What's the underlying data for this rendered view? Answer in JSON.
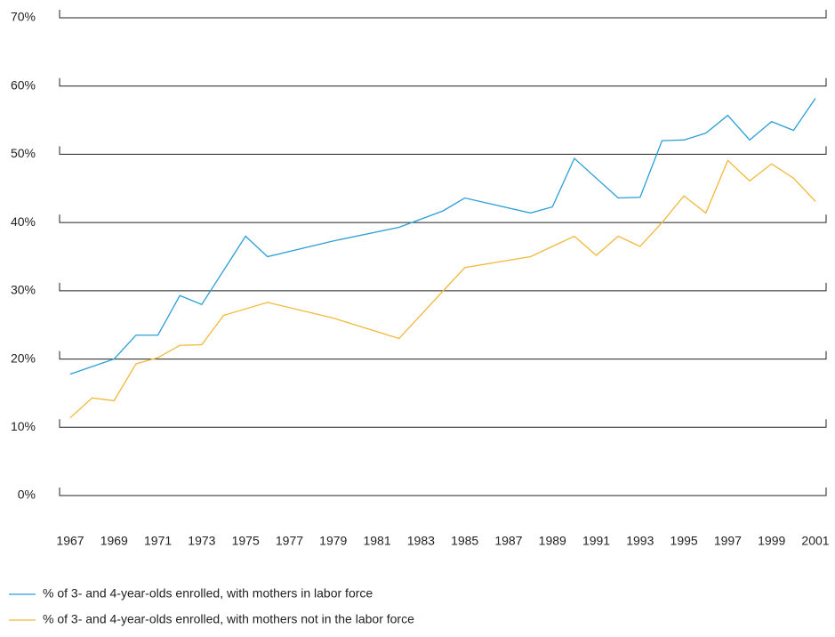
{
  "chart_data": {
    "type": "line",
    "xlim": [
      1967,
      2001
    ],
    "xticks": [
      1967,
      1969,
      1971,
      1973,
      1975,
      1977,
      1979,
      1981,
      1983,
      1985,
      1987,
      1989,
      1991,
      1993,
      1995,
      1997,
      1999,
      2001
    ],
    "ylim": [
      0,
      70
    ],
    "yticks": [
      {
        "value": 0,
        "label": "0%"
      },
      {
        "value": 10,
        "label": "10%"
      },
      {
        "value": 20,
        "label": "20%"
      },
      {
        "value": 30,
        "label": "30%"
      },
      {
        "value": 40,
        "label": "40%"
      },
      {
        "value": 50,
        "label": "50%"
      },
      {
        "value": 60,
        "label": "60%"
      },
      {
        "value": 70,
        "label": "70%"
      }
    ],
    "grid": true,
    "series": [
      {
        "name": "% of 3- and 4-year-olds enrolled, with mothers in labor force",
        "color": "#2a9fd6",
        "x": [
          1967,
          1969,
          1970,
          1971,
          1972,
          1973,
          1975,
          1976,
          1979,
          1982,
          1984,
          1985,
          1988,
          1989,
          1990,
          1992,
          1993,
          1994,
          1995,
          1996,
          1997,
          1998,
          1999,
          2000,
          2001
        ],
        "values": [
          17.8,
          20.0,
          23.5,
          23.5,
          29.3,
          28.0,
          38.0,
          35.0,
          37.3,
          39.3,
          41.7,
          43.6,
          41.4,
          42.3,
          49.4,
          43.6,
          43.7,
          52.0,
          52.1,
          53.1,
          55.7,
          52.1,
          54.8,
          53.5,
          58.2
        ]
      },
      {
        "name": "% of 3- and 4-year-olds enrolled, with mothers not in the labor force",
        "color": "#f0b93a",
        "x": [
          1967,
          1968,
          1969,
          1970,
          1971,
          1972,
          1973,
          1974,
          1976,
          1979,
          1982,
          1985,
          1988,
          1990,
          1991,
          1992,
          1993,
          1994,
          1995,
          1996,
          1997,
          1998,
          1999,
          2000,
          2001
        ],
        "values": [
          11.4,
          14.3,
          13.9,
          19.3,
          20.2,
          22.0,
          22.1,
          26.4,
          28.3,
          26.0,
          23.0,
          33.4,
          35.0,
          38.0,
          35.2,
          38.0,
          36.5,
          40.0,
          43.9,
          41.4,
          49.1,
          46.1,
          48.6,
          46.5,
          43.1
        ]
      }
    ]
  }
}
